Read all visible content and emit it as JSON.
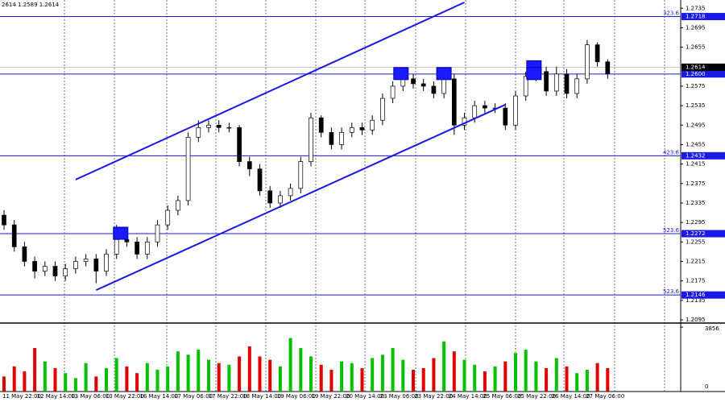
{
  "chart_data": {
    "type": "candlestick",
    "header": "2614 1.2589 1.2614",
    "ylim": [
      1.209,
      1.2752
    ],
    "yticks": [
      1.2735,
      1.2695,
      1.2655,
      1.2575,
      1.2535,
      1.2495,
      1.2455,
      1.2415,
      1.2375,
      1.2335,
      1.2295,
      1.2255,
      1.2215,
      1.2175,
      1.2135,
      1.2095
    ],
    "y2lim": [
      0,
      3856
    ],
    "y2ticks": [
      0,
      3856
    ],
    "xlabels": [
      "11 May 22:00",
      "12 May 14:00",
      "13 May 06:00",
      "13 May 22:00",
      "16 May 14:00",
      "17 May 06:00",
      "17 May 22:00",
      "18 May 14:00",
      "19 May 06:00",
      "19 May 22:00",
      "20 May 14:00",
      "23 May 06:00",
      "23 May 22:00",
      "24 May 14:00",
      "25 May 06:00",
      "25 May 22:00",
      "26 May 14:00",
      "27 May 06:00"
    ],
    "up_color": "#ffffff",
    "down_color": "#000000",
    "volume_up_color": "#00c000",
    "volume_down_color": "#e00000",
    "level_color": "#1a1ae6",
    "open": [
      1.231,
      1.229,
      1.2245,
      1.2215,
      1.2195,
      1.2205,
      1.2185,
      1.22,
      1.2215,
      1.222,
      1.2195,
      1.223,
      1.226,
      1.2255,
      1.223,
      1.2255,
      1.229,
      1.232,
      1.234,
      1.247,
      1.249,
      1.2495,
      1.249,
      1.249,
      1.242,
      1.2405,
      1.236,
      1.2335,
      1.235,
      1.2365,
      1.242,
      1.251,
      1.248,
      1.2455,
      1.248,
      1.249,
      1.2485,
      1.2505,
      1.255,
      1.2575,
      1.259,
      1.258,
      1.2575,
      1.256,
      1.259,
      1.2495,
      1.251,
      1.2535,
      1.253,
      1.253,
      1.2495,
      1.2555,
      1.2595,
      1.2605,
      1.2565,
      1.26,
      1.256,
      1.259,
      1.266,
      1.2625
    ],
    "high": [
      1.232,
      1.23,
      1.2255,
      1.2225,
      1.2215,
      1.2215,
      1.221,
      1.2225,
      1.223,
      1.223,
      1.224,
      1.229,
      1.227,
      1.2265,
      1.2265,
      1.23,
      1.233,
      1.235,
      1.248,
      1.2505,
      1.2505,
      1.2505,
      1.25,
      1.2495,
      1.243,
      1.2415,
      1.237,
      1.236,
      1.2375,
      1.243,
      1.252,
      1.2515,
      1.249,
      1.249,
      1.25,
      1.25,
      1.2515,
      1.256,
      1.2585,
      1.26,
      1.26,
      1.259,
      1.2585,
      1.26,
      1.26,
      1.252,
      1.2545,
      1.2545,
      1.254,
      1.254,
      1.2565,
      1.2605,
      1.2615,
      1.2615,
      1.2615,
      1.261,
      1.26,
      1.267,
      1.2665,
      1.263
    ],
    "low": [
      1.228,
      1.2235,
      1.2205,
      1.218,
      1.2185,
      1.2175,
      1.2175,
      1.219,
      1.2205,
      1.217,
      1.2185,
      1.222,
      1.2245,
      1.222,
      1.222,
      1.2245,
      1.228,
      1.231,
      1.233,
      1.246,
      1.248,
      1.248,
      1.248,
      1.241,
      1.239,
      1.235,
      1.2325,
      1.2325,
      1.234,
      1.2355,
      1.241,
      1.247,
      1.2445,
      1.2445,
      1.247,
      1.2475,
      1.2475,
      1.2495,
      1.254,
      1.2565,
      1.257,
      1.2565,
      1.255,
      1.255,
      1.2475,
      1.2485,
      1.25,
      1.252,
      1.252,
      1.2485,
      1.2485,
      1.2545,
      1.2585,
      1.2555,
      1.2555,
      1.255,
      1.255,
      1.258,
      1.2615,
      1.259
    ],
    "close": [
      1.229,
      1.2245,
      1.2215,
      1.2195,
      1.2205,
      1.2185,
      1.22,
      1.2215,
      1.222,
      1.2195,
      1.223,
      1.226,
      1.2255,
      1.223,
      1.2255,
      1.229,
      1.232,
      1.234,
      1.247,
      1.249,
      1.2495,
      1.249,
      1.249,
      1.242,
      1.2405,
      1.236,
      1.2335,
      1.235,
      1.2365,
      1.242,
      1.251,
      1.248,
      1.2455,
      1.248,
      1.249,
      1.2485,
      1.2505,
      1.255,
      1.2575,
      1.259,
      1.258,
      1.2575,
      1.256,
      1.259,
      1.2495,
      1.251,
      1.2535,
      1.253,
      1.253,
      1.2495,
      1.2555,
      1.2595,
      1.2605,
      1.2565,
      1.26,
      1.256,
      1.259,
      1.266,
      1.2625,
      1.26
    ],
    "volume": [
      900,
      1500,
      1200,
      2600,
      1800,
      1400,
      1100,
      800,
      1700,
      900,
      1400,
      2000,
      1500,
      1100,
      1700,
      1300,
      1500,
      2400,
      2200,
      2500,
      1900,
      1700,
      1600,
      2100,
      2700,
      2100,
      1900,
      1500,
      3200,
      2600,
      2100,
      1600,
      1300,
      1800,
      1700,
      1400,
      2000,
      2200,
      2600,
      1900,
      1300,
      1400,
      2000,
      3000,
      2400,
      1900,
      1600,
      1200,
      1500,
      1800,
      2300,
      2500,
      1800,
      1400,
      2000,
      1500,
      1100,
      1300,
      1700,
      1400
    ],
    "levels": [
      {
        "price": 1.2718,
        "fib": "323.6"
      },
      {
        "price": {
          "value": 1.26,
          "label": "1.2600"
        }
      },
      {
        "price": 1.2432,
        "fib": "423.6"
      },
      {
        "price": 1.2272,
        "fib": "523.6"
      },
      {
        "price": 1.2146,
        "fib": "523.6"
      }
    ],
    "current_price": 1.2614,
    "channel": [
      {
        "x": [
          7,
          45
        ],
        "y": [
          1.2383,
          1.2747
        ]
      },
      {
        "x": [
          9,
          49
        ],
        "y": [
          1.2156,
          1.2537
        ]
      }
    ],
    "markers": [
      {
        "x": 11.4,
        "y": 1.2272
      },
      {
        "x": 38.8,
        "y": 1.26
      },
      {
        "x": 43,
        "y": 1.26
      },
      {
        "x": 51.8,
        "y": 1.2614
      },
      {
        "x": 51.8,
        "y": 1.26
      }
    ]
  }
}
